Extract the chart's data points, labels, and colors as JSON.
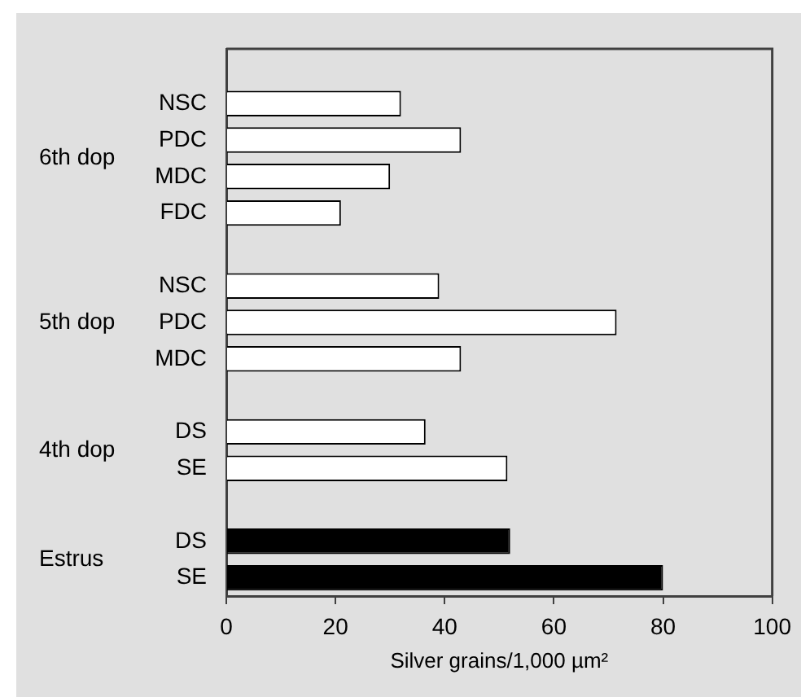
{
  "chart_data": {
    "type": "bar",
    "orientation": "horizontal",
    "xlabel": "Silver grains/1,000 µm²",
    "categories": [
      null,
      "NSC",
      "PDC",
      "MDC",
      "FDC",
      null,
      "NSC",
      "PDC",
      "MDC",
      null,
      "DS",
      "SE",
      null,
      "DS",
      "SE"
    ],
    "values": [
      null,
      32,
      43,
      30,
      21,
      null,
      39,
      71.5,
      43,
      null,
      36.5,
      51.5,
      null,
      52,
      80
    ],
    "colors": [
      "#ffffff",
      "#ffffff",
      "#ffffff",
      "#ffffff",
      "#ffffff",
      "#ffffff",
      "#ffffff",
      "#ffffff",
      "#ffffff",
      "#ffffff",
      "#ffffff",
      "#ffffff",
      "#ffffff",
      "#000000",
      "#000000"
    ],
    "annotations": [
      "6th dop",
      "5th dop",
      "4th dop",
      "Estrus"
    ],
    "xlim": [
      0,
      100
    ],
    "xticks": [
      0,
      20,
      40,
      60,
      80,
      100
    ],
    "grid": false,
    "legend": false
  }
}
